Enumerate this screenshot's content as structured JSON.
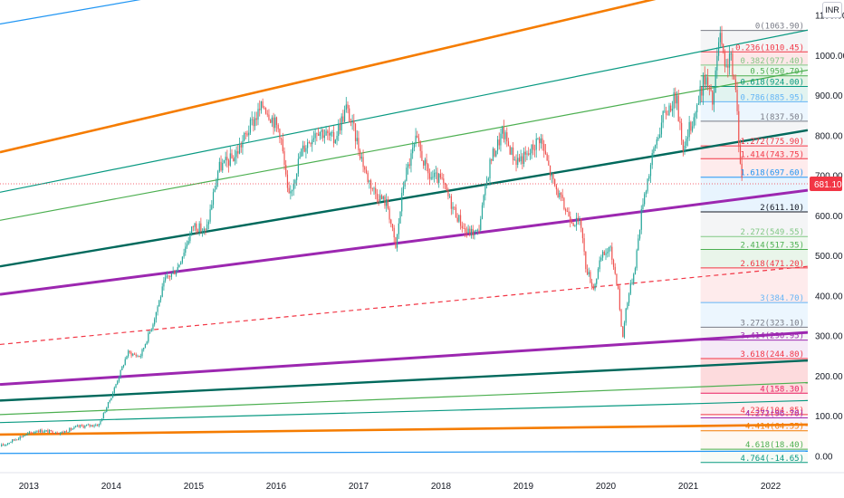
{
  "currency_badge": "INR",
  "price_tag": {
    "text": "681.10",
    "value": 681.1,
    "color": "#f23645"
  },
  "chart_data": {
    "type": "line",
    "title": "",
    "xlabel": "",
    "ylabel": "",
    "x_ticks": [
      "2013",
      "2014",
      "2015",
      "2016",
      "2017",
      "2018",
      "2019",
      "2020",
      "2021",
      "2022"
    ],
    "y_ticks": [
      "1100.00",
      "1000.00",
      "900.00",
      "800.00",
      "700.00",
      "600.00",
      "500.00",
      "400.00",
      "300.00",
      "200.00",
      "100.00",
      "0.00"
    ],
    "xlim": [
      2012.65,
      2022.45
    ],
    "ylim": [
      -40,
      1140
    ],
    "grid": false,
    "candlestick_colors": {
      "up": "#26a69a",
      "down": "#ef5350"
    },
    "series": [
      {
        "type": "candlestick",
        "points": [
          [
            2012.65,
            25
          ],
          [
            2012.9,
            50
          ],
          [
            2013.1,
            65
          ],
          [
            2013.4,
            60
          ],
          [
            2013.6,
            75
          ],
          [
            2013.85,
            80
          ],
          [
            2014.0,
            150
          ],
          [
            2014.2,
            260
          ],
          [
            2014.35,
            250
          ],
          [
            2014.5,
            330
          ],
          [
            2014.65,
            440
          ],
          [
            2014.8,
            470
          ],
          [
            2015.0,
            580
          ],
          [
            2015.15,
            560
          ],
          [
            2015.3,
            720
          ],
          [
            2015.5,
            750
          ],
          [
            2015.7,
            830
          ],
          [
            2015.85,
            880
          ],
          [
            2016.05,
            810
          ],
          [
            2016.15,
            640
          ],
          [
            2016.3,
            760
          ],
          [
            2016.5,
            820
          ],
          [
            2016.7,
            790
          ],
          [
            2016.85,
            870
          ],
          [
            2016.95,
            810
          ],
          [
            2017.1,
            700
          ],
          [
            2017.2,
            660
          ],
          [
            2017.35,
            630
          ],
          [
            2017.45,
            520
          ],
          [
            2017.55,
            690
          ],
          [
            2017.7,
            790
          ],
          [
            2017.85,
            700
          ],
          [
            2018.0,
            690
          ],
          [
            2018.15,
            620
          ],
          [
            2018.3,
            560
          ],
          [
            2018.45,
            560
          ],
          [
            2018.6,
            740
          ],
          [
            2018.75,
            810
          ],
          [
            2018.9,
            740
          ],
          [
            2019.05,
            750
          ],
          [
            2019.2,
            800
          ],
          [
            2019.35,
            690
          ],
          [
            2019.5,
            620
          ],
          [
            2019.6,
            590
          ],
          [
            2019.7,
            580
          ],
          [
            2019.75,
            480
          ],
          [
            2019.85,
            420
          ],
          [
            2019.95,
            500
          ],
          [
            2020.05,
            520
          ],
          [
            2020.15,
            420
          ],
          [
            2020.2,
            290
          ],
          [
            2020.25,
            380
          ],
          [
            2020.35,
            470
          ],
          [
            2020.45,
            640
          ],
          [
            2020.6,
            780
          ],
          [
            2020.7,
            850
          ],
          [
            2020.85,
            900
          ],
          [
            2020.95,
            760
          ],
          [
            2021.0,
            810
          ],
          [
            2021.1,
            870
          ],
          [
            2021.2,
            950
          ],
          [
            2021.3,
            880
          ],
          [
            2021.38,
            1060
          ],
          [
            2021.45,
            950
          ],
          [
            2021.5,
            1010
          ],
          [
            2021.58,
            900
          ],
          [
            2021.62,
            770
          ],
          [
            2021.65,
            695
          ]
        ]
      }
    ],
    "trend_lines": [
      {
        "color": "#2196f3",
        "width": 1.2,
        "from": [
          2012.65,
          1080
        ],
        "to": [
          2014.6,
          1150
        ],
        "dashed": false
      },
      {
        "color": "#f57c00",
        "width": 2.6,
        "from": [
          2012.65,
          760
        ],
        "to": [
          2020.65,
          1145
        ],
        "dashed": false
      },
      {
        "color": "#089981",
        "width": 1.2,
        "from": [
          2012.65,
          660
        ],
        "to": [
          2022.45,
          1065
        ],
        "dashed": false
      },
      {
        "color": "#4caf50",
        "width": 1.2,
        "from": [
          2012.65,
          590
        ],
        "to": [
          2022.45,
          965
        ],
        "dashed": false
      },
      {
        "color": "#00695c",
        "width": 2.4,
        "from": [
          2012.65,
          475
        ],
        "to": [
          2022.45,
          815
        ],
        "dashed": false
      },
      {
        "color": "#9c27b0",
        "width": 3.0,
        "from": [
          2012.65,
          405
        ],
        "to": [
          2022.45,
          665
        ],
        "dashed": false
      },
      {
        "color": "#f23645",
        "width": 1.2,
        "from": [
          2012.65,
          280
        ],
        "to": [
          2022.45,
          475
        ],
        "dashed": true
      },
      {
        "color": "#9c27b0",
        "width": 3.0,
        "from": [
          2012.65,
          180
        ],
        "to": [
          2022.45,
          310
        ],
        "dashed": false
      },
      {
        "color": "#00695c",
        "width": 2.4,
        "from": [
          2012.65,
          140
        ],
        "to": [
          2022.45,
          240
        ],
        "dashed": false
      },
      {
        "color": "#4caf50",
        "width": 1.2,
        "from": [
          2012.65,
          105
        ],
        "to": [
          2022.45,
          185
        ],
        "dashed": false
      },
      {
        "color": "#089981",
        "width": 1.2,
        "from": [
          2012.65,
          85
        ],
        "to": [
          2022.45,
          140
        ],
        "dashed": false
      },
      {
        "color": "#f57c00",
        "width": 2.6,
        "from": [
          2012.65,
          55
        ],
        "to": [
          2022.45,
          80
        ],
        "dashed": false
      },
      {
        "color": "#2196f3",
        "width": 1.2,
        "from": [
          2012.65,
          8
        ],
        "to": [
          2022.45,
          14
        ],
        "dashed": false
      }
    ],
    "fib_start_x": 2021.15,
    "fib_levels": [
      {
        "label": "0(1063.90)",
        "value": 1063.9,
        "color": "#787b86",
        "fill": "rgba(120,123,134,0.08)"
      },
      {
        "label": "0.236(1010.45)",
        "value": 1010.45,
        "color": "#f23645",
        "fill": "rgba(242,54,69,0.12)"
      },
      {
        "label": "0.382(977.40)",
        "value": 977.4,
        "color": "#81c784",
        "fill": "rgba(129,199,132,0.15)"
      },
      {
        "label": "0.5(950.70)",
        "value": 950.7,
        "color": "#4caf50",
        "fill": "rgba(76,175,80,0.15)"
      },
      {
        "label": "0.618(924.00)",
        "value": 924.0,
        "color": "#089981",
        "fill": "rgba(8,153,129,0.12)"
      },
      {
        "label": "0.786(885.95)",
        "value": 885.95,
        "color": "#64b5f6",
        "fill": "rgba(100,181,246,0.12)"
      },
      {
        "label": "1(837.50)",
        "value": 837.5,
        "color": "#787b86",
        "fill": "rgba(120,123,134,0.08)"
      },
      {
        "label": "1.272(775.90)",
        "value": 775.9,
        "color": "#f23645",
        "fill": "rgba(242,54,69,0.12)"
      },
      {
        "label": "1.414(743.75)",
        "value": 743.75,
        "color": "#f23645",
        "fill": "rgba(242,54,69,0.10)"
      },
      {
        "label": "1.618(697.60)",
        "value": 697.6,
        "color": "#2196f3",
        "fill": "rgba(33,150,243,0.10)"
      },
      {
        "label": "2(611.10)",
        "value": 611.1,
        "color": "#131722",
        "fill": "rgba(120,123,134,0.08)"
      },
      {
        "label": "2.272(549.55)",
        "value": 549.55,
        "color": "#81c784",
        "fill": "rgba(129,199,132,0.12)"
      },
      {
        "label": "2.414(517.35)",
        "value": 517.35,
        "color": "#4caf50",
        "fill": "rgba(76,175,80,0.12)"
      },
      {
        "label": "2.618(471.20)",
        "value": 471.2,
        "color": "#f23645",
        "fill": "rgba(242,54,69,0.10)"
      },
      {
        "label": "3(384.70)",
        "value": 384.7,
        "color": "#64b5f6",
        "fill": "rgba(100,181,246,0.12)"
      },
      {
        "label": "3.272(323.10)",
        "value": 323.1,
        "color": "#787b86",
        "fill": "rgba(120,123,134,0.08)"
      },
      {
        "label": "3.414(290.95)",
        "value": 290.95,
        "color": "#9c27b0",
        "fill": "rgba(156,39,176,0.10)"
      },
      {
        "label": "3.618(244.80)",
        "value": 244.8,
        "color": "#f23645",
        "fill": "rgba(242,54,69,0.18)"
      },
      {
        "label": "4(158.30)",
        "value": 158.3,
        "color": "#e91e63",
        "fill": "rgba(242,54,69,0.08)"
      },
      {
        "label": "4.236(104.85)",
        "value": 104.85,
        "color": "#f23645",
        "fill": "rgba(242,54,69,0.05)"
      },
      {
        "label": "4.272(96.70)",
        "value": 96.7,
        "color": "#9c27b0",
        "fill": "rgba(156,39,176,0.05)"
      },
      {
        "label": "4.414(64.55)",
        "value": 64.55,
        "color": "#f57c00",
        "fill": "rgba(245,124,0,0.05)"
      },
      {
        "label": "4.618(18.40)",
        "value": 18.4,
        "color": "#4caf50",
        "fill": "rgba(76,175,80,0.05)"
      },
      {
        "label": "4.764(-14.65)",
        "value": -14.65,
        "color": "#089981",
        "fill": "rgba(8,153,129,0.03)"
      }
    ]
  }
}
